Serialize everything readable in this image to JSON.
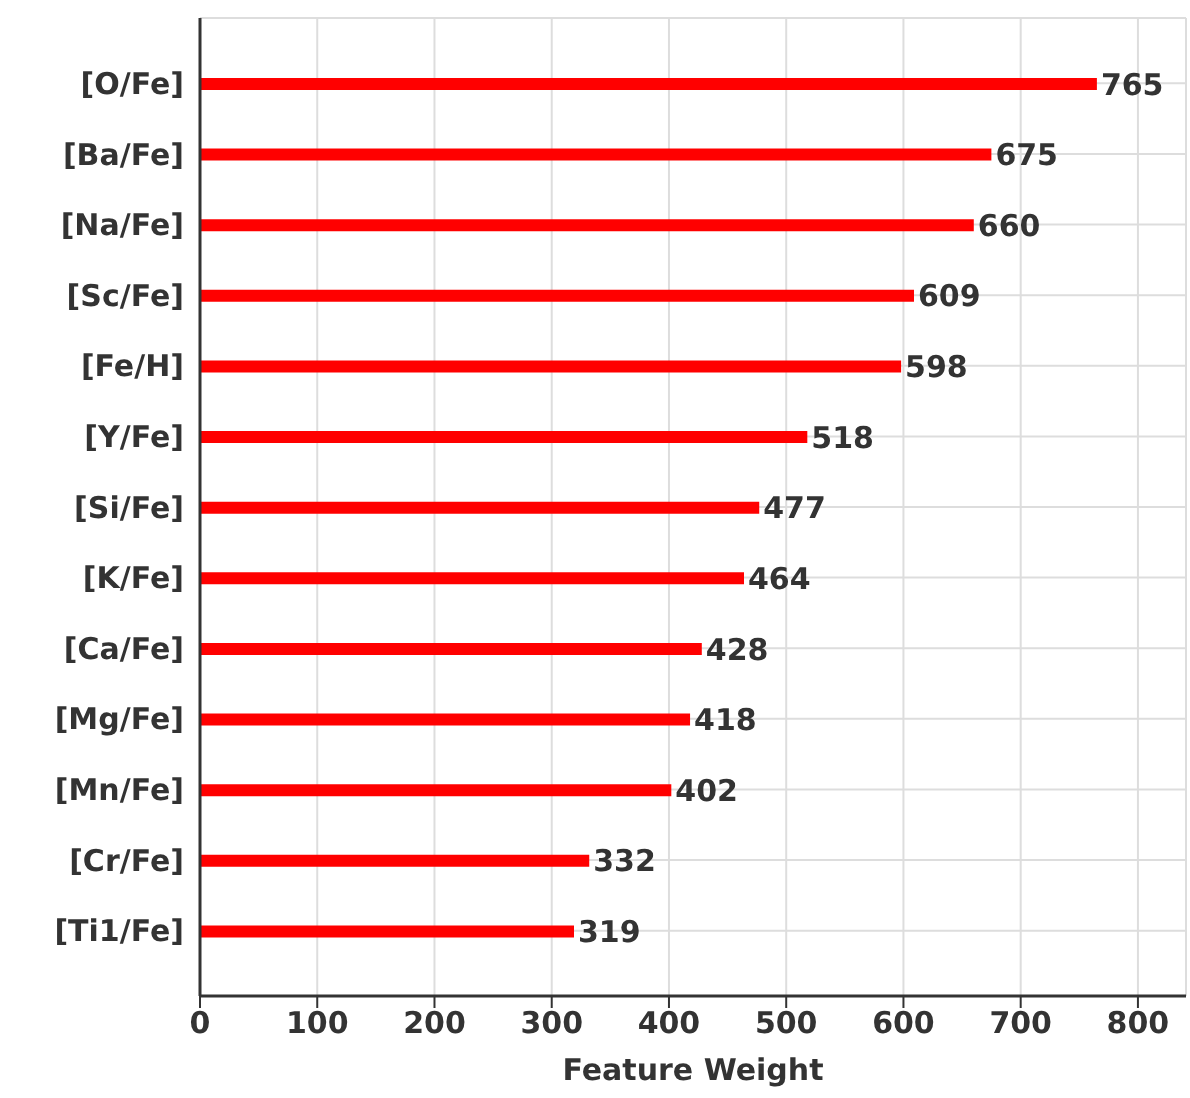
{
  "chart_data": {
    "type": "bar",
    "orientation": "horizontal",
    "xlabel": "Feature Weight",
    "categories": [
      "[O/Fe]",
      "[Ba/Fe]",
      "[Na/Fe]",
      "[Sc/Fe]",
      "[Fe/H]",
      "[Y/Fe]",
      "[Si/Fe]",
      "[K/Fe]",
      "[Ca/Fe]",
      "[Mg/Fe]",
      "[Mn/Fe]",
      "[Cr/Fe]",
      "[Ti1/Fe]"
    ],
    "values": [
      765,
      675,
      660,
      609,
      598,
      518,
      477,
      464,
      428,
      418,
      402,
      332,
      319
    ],
    "color": "#ff0000",
    "xlim": [
      0,
      841
    ],
    "xticks": [
      0,
      100,
      200,
      300,
      400,
      500,
      600,
      700,
      800
    ],
    "grid": true,
    "data_labels": true
  }
}
